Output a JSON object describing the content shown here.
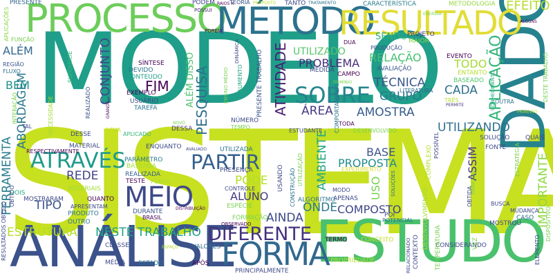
{
  "words": [
    {
      "text": "SISTEMA",
      "color": "#c7e020"
    },
    {
      "text": "MODELO",
      "color": "#1f9e89"
    },
    {
      "text": "ANÁLISE",
      "color": "#3b528b"
    },
    {
      "text": "ESTUDO",
      "color": "#4ac16d"
    },
    {
      "text": "PROCESSO",
      "color": "#6ccd5a"
    },
    {
      "text": "DADO",
      "color": "#26828e"
    },
    {
      "text": "MÉTODO",
      "color": "#2c728e"
    },
    {
      "text": "RESULTADO",
      "color": "#e1dd37"
    },
    {
      "text": "FORMA",
      "color": "#31688e"
    },
    {
      "text": "MEIO",
      "color": "#3e4989"
    },
    {
      "text": "SOBRE",
      "color": "#25848e"
    },
    {
      "text": "PARTIR",
      "color": "#355f8d"
    },
    {
      "text": "ATRAVÉS",
      "color": "#1f9a8a"
    },
    {
      "text": "DIFERENTE",
      "color": "#46327e"
    },
    {
      "text": "EFEITO",
      "color": "#b5de2b"
    },
    {
      "text": "PROBLEMA",
      "color": "#472d7b"
    },
    {
      "text": "TÉCNICA",
      "color": "#39568c"
    },
    {
      "text": "GRUPO",
      "color": "#2a788e"
    },
    {
      "text": "AMOSTRA",
      "color": "#365c8d"
    },
    {
      "text": "CADA",
      "color": "#2d708e"
    },
    {
      "text": "ÁREA",
      "color": "#443a83"
    },
    {
      "text": "UTILIZANDO",
      "color": "#2e6e8e"
    },
    {
      "text": "APLICAÇÃO",
      "color": "#35b779"
    },
    {
      "text": "ATIVIDADE",
      "color": "#481f70"
    },
    {
      "text": "PESQUISA",
      "color": "#2d708e"
    },
    {
      "text": "CONJUNTO",
      "color": "#3e4989"
    },
    {
      "text": "FIM",
      "color": "#440154"
    },
    {
      "text": "ABORDAGEM",
      "color": "#2a788e"
    },
    {
      "text": "ALÉM",
      "color": "#31688e"
    },
    {
      "text": "BEM",
      "color": "#20928c"
    },
    {
      "text": "FERRAMENTA",
      "color": "#287d8e"
    },
    {
      "text": "ESTRUTURA",
      "color": "#b5de2b"
    },
    {
      "text": "NESTE TRABALHO",
      "color": "#1f9e89"
    },
    {
      "text": "TIPO",
      "color": "#3b528b"
    },
    {
      "text": "REDE",
      "color": "#414487"
    },
    {
      "text": "PODE",
      "color": "#b5de2b"
    },
    {
      "text": "ALUNO",
      "color": "#443a83"
    },
    {
      "text": "ONDE",
      "color": "#2a788e"
    },
    {
      "text": "AINDA",
      "color": "#3e4989"
    },
    {
      "text": "COMPOSTO",
      "color": "#404688"
    },
    {
      "text": "PROPOSTA",
      "color": "#228c8d"
    },
    {
      "text": "BASE",
      "color": "#3b528b"
    },
    {
      "text": "AMBIENTE",
      "color": "#22a884"
    },
    {
      "text": "USO",
      "color": "#7ad151"
    },
    {
      "text": "ASSIM",
      "color": "#46337f"
    },
    {
      "text": "IMPORTANTE",
      "color": "#8fd744"
    },
    {
      "text": "TODO",
      "color": "#a5db36"
    },
    {
      "text": "RELAÇÃO",
      "color": "#46c06f"
    },
    {
      "text": "UTILIZADO",
      "color": "#54c568"
    },
    {
      "text": "SENDO",
      "color": "#29af7f"
    },
    {
      "text": "ALÉM DISSO",
      "color": "#4ac16d"
    },
    {
      "text": "PRESENTE",
      "color": "#31688e"
    },
    {
      "text": "APLICAÇÕES",
      "color": "#8fd744"
    },
    {
      "text": "FUNÇÃO",
      "color": "#7ad151"
    },
    {
      "text": "REGIÃO",
      "color": "#39568c"
    },
    {
      "text": "FLUXO",
      "color": "#2c728e"
    },
    {
      "text": "INTERAÇÃO",
      "color": "#7ad151"
    },
    {
      "text": "TAL",
      "color": "#3e4989"
    },
    {
      "text": "PODEM",
      "color": "#3e4989"
    },
    {
      "text": "POSSUI",
      "color": "#481f70"
    },
    {
      "text": "TEORIA",
      "color": "#3b528b"
    },
    {
      "text": "PROPOSTO",
      "color": "#b5de2b"
    },
    {
      "text": "TANTO",
      "color": "#3e4989"
    },
    {
      "text": "TRATAMENTO",
      "color": "#2c728e"
    },
    {
      "text": "CARACTERÍSTICA",
      "color": "#287d8e"
    },
    {
      "text": "METODOLOGIA",
      "color": "#95d840"
    },
    {
      "text": "PROJETO",
      "color": "#46327e"
    },
    {
      "text": "MAIOR",
      "color": "#86d549"
    },
    {
      "text": "PRODUÇÃO",
      "color": "#3b528b"
    },
    {
      "text": "AVALIAÇÃO",
      "color": "#39568c"
    },
    {
      "text": "EVENTO",
      "color": "#440154"
    },
    {
      "text": "ENTANTO",
      "color": "#b5de2b"
    },
    {
      "text": "CAMPO",
      "color": "#440154"
    },
    {
      "text": "MEDIDA",
      "color": "#3e4989"
    },
    {
      "text": "BASEADO",
      "color": "#52c569"
    },
    {
      "text": "LITERATURA",
      "color": "#31688e"
    },
    {
      "text": "COMPORTAMENTO",
      "color": "#2c728e"
    },
    {
      "text": "TRÊS",
      "color": "#b5de2b"
    },
    {
      "text": "PERMITE",
      "color": "#46327e"
    },
    {
      "text": "OUTRA",
      "color": "#2c728e"
    },
    {
      "text": "CONHECIMENTO",
      "color": "#22a884"
    },
    {
      "text": "SÍNTESE",
      "color": "#440154"
    },
    {
      "text": "DEVIDO",
      "color": "#2c728e"
    },
    {
      "text": "CONTEUDO",
      "color": "#1f9e89"
    },
    {
      "text": "EXEMPLO",
      "color": "#440154"
    },
    {
      "text": "USUÁRIO",
      "color": "#3e4989"
    },
    {
      "text": "TAREFA",
      "color": "#2c728e"
    },
    {
      "text": "SUPERFÍCIE",
      "color": "#35b779"
    },
    {
      "text": "NECESSIDADE",
      "color": "#a5db36"
    },
    {
      "text": "REALIZADO",
      "color": "#3b528b"
    },
    {
      "text": "ÁGUA",
      "color": "#c2df23"
    },
    {
      "text": "DESSE",
      "color": "#3e4989"
    },
    {
      "text": "DESSA",
      "color": "#46327e"
    },
    {
      "text": "APLICADO",
      "color": "#35b779"
    },
    {
      "text": "MATERIAL",
      "color": "#3e4989"
    },
    {
      "text": "RESPECTIVAMENTE",
      "color": "#440154"
    },
    {
      "text": "ENQUANTO",
      "color": "#3e4989"
    },
    {
      "text": "PARÂMETRO",
      "color": "#2a788e"
    },
    {
      "text": "BASEADA",
      "color": "#a5db36"
    },
    {
      "text": "REALIZADA",
      "color": "#355f8d"
    },
    {
      "text": "TESTE",
      "color": "#440154"
    },
    {
      "text": "PONTO",
      "color": "#a5db36"
    },
    {
      "text": "QUANTO",
      "color": "#440154"
    },
    {
      "text": "DURANTE",
      "color": "#3b528b"
    },
    {
      "text": "BRASIL",
      "color": "#440154"
    },
    {
      "text": "APRESENTAM",
      "color": "#3e4989"
    },
    {
      "text": "PRODUTO",
      "color": "#2c728e"
    },
    {
      "text": "OUTRO",
      "color": "#2c728e"
    },
    {
      "text": "MOSTRARAM",
      "color": "#3e4989"
    },
    {
      "text": "MATERIAIS",
      "color": "#a5db36"
    },
    {
      "text": "DOIS",
      "color": "#22a884"
    },
    {
      "text": "CLASSE",
      "color": "#3e4989"
    },
    {
      "text": "OBTIDO",
      "color": "#3e4989"
    },
    {
      "text": "MÉDIA",
      "color": "#3e4989"
    },
    {
      "text": "ESTADO",
      "color": "#2c728e"
    },
    {
      "text": "APÓS",
      "color": "#440154"
    },
    {
      "text": "VALORES",
      "color": "#31688e"
    },
    {
      "text": "ENSINO MÉDIO",
      "color": "#7ad151"
    },
    {
      "text": "AUMENTO",
      "color": "#22a884"
    },
    {
      "text": "PRESENTE TRABALHO",
      "color": "#3b528b"
    },
    {
      "text": "DINÂMICA",
      "color": "#3e4989"
    },
    {
      "text": "DUA",
      "color": "#440154"
    },
    {
      "text": "NÚMERO",
      "color": "#3e4989"
    },
    {
      "text": "TEMPO",
      "color": "#7ad151"
    },
    {
      "text": "TODA",
      "color": "#440154"
    },
    {
      "text": "UTILIZADA",
      "color": "#2c728e"
    },
    {
      "text": "PRESENÇA",
      "color": "#3e4989"
    },
    {
      "text": "CONTROLE",
      "color": "#3e4989"
    },
    {
      "text": "ESPÉCIE",
      "color": "#7ad151"
    },
    {
      "text": "FORMAÇÃO",
      "color": "#7ad151"
    },
    {
      "text": "ALGORITMO",
      "color": "#2c728e"
    },
    {
      "text": "MODO",
      "color": "#3e4989"
    },
    {
      "text": "APENAS",
      "color": "#3e4989"
    },
    {
      "text": "USANDO",
      "color": "#3e4989"
    },
    {
      "text": "CONSTRUÇÃO",
      "color": "#2c728e"
    },
    {
      "text": "UTILIZAÇÃO",
      "color": "#7ad151"
    },
    {
      "text": "ESTUDANTE",
      "color": "#3e4989"
    },
    {
      "text": "DESENVOLVIDO",
      "color": "#7ad151"
    },
    {
      "text": "EXPERIMENTO",
      "color": "#e1dd37"
    },
    {
      "text": "MECANISMO",
      "color": "#b5de2b"
    },
    {
      "text": "PRINCIPALMENTE",
      "color": "#3e4989"
    },
    {
      "text": "PROPRIEDADE",
      "color": "#b5de2b"
    },
    {
      "text": "CONCEITO",
      "color": "#c2df23"
    },
    {
      "text": "TERMO",
      "color": "#440154"
    },
    {
      "text": "DESENVOLVIMENTO",
      "color": "#a5db36"
    },
    {
      "text": "CONSIDERANDO",
      "color": "#3e4989"
    },
    {
      "text": "TEMPERATURA",
      "color": "#7ad151"
    },
    {
      "text": "RELACIONADO",
      "color": "#3e4989"
    },
    {
      "text": "CONTEXTO",
      "color": "#3e4989"
    },
    {
      "text": "POTENCIAL",
      "color": "#2c728e"
    },
    {
      "text": "SOLUÇÕES",
      "color": "#2c728e"
    },
    {
      "text": "OBSERVADO",
      "color": "#440154"
    },
    {
      "text": "AVALIADO",
      "color": "#3e4989"
    },
    {
      "text": "SOLUÇÃO",
      "color": "#3e4989"
    },
    {
      "text": "FONTE",
      "color": "#3e4989"
    },
    {
      "text": "QUAIS",
      "color": "#3e4989"
    },
    {
      "text": "ESTRATÉGIA",
      "color": "#7ad151"
    },
    {
      "text": "PRINCIPAL",
      "color": "#7ad151"
    },
    {
      "text": "OBTIDA",
      "color": "#3e4989"
    },
    {
      "text": "MOSTROU",
      "color": "#3e4989"
    },
    {
      "text": "BUSCA",
      "color": "#3e4989"
    },
    {
      "text": "CASO",
      "color": "#2c728e"
    },
    {
      "text": "MUDANÇA",
      "color": "#3e4989"
    },
    {
      "text": "VEZ",
      "color": "#7ad151"
    },
    {
      "text": "ELEMENTO",
      "color": "#3e4989"
    },
    {
      "text": "DISPOSITIVO",
      "color": "#7ad151"
    },
    {
      "text": "COMPLEXO",
      "color": "#b5de2b"
    },
    {
      "text": "POSSÍVEL",
      "color": "#3e4989"
    },
    {
      "text": "PRIMEIRO",
      "color": "#b5de2b"
    },
    {
      "text": "DESTE TRABALHO",
      "color": "#7ad151"
    },
    {
      "text": "ENERGIA",
      "color": "#7ad151"
    },
    {
      "text": "ALGUNS",
      "color": "#440154"
    },
    {
      "text": "RESULTADOS OBTIDO",
      "color": "#3e4989"
    },
    {
      "text": "DISTRIBUIÇÃO",
      "color": "#440154"
    },
    {
      "text": "RAIOS X",
      "color": "#440154"
    },
    {
      "text": "POI",
      "color": "#3e4989"
    },
    {
      "text": "ESPAÇO",
      "color": "#b5de2b"
    },
    {
      "text": "NOVO",
      "color": "#7ad151"
    },
    {
      "text": "GRANDE",
      "color": "#440154"
    },
    {
      "text": "DOMÍNIO",
      "color": "#7ad151"
    },
    {
      "text": "PORÉM",
      "color": "#440154"
    },
    {
      "text": "TRABALHO",
      "color": "#3e4989"
    },
    {
      "text": "APRESENTA",
      "color": "#3e4989"
    },
    {
      "text": "RELACIONADA",
      "color": "#3e4989"
    },
    {
      "text": "PORTANTO",
      "color": "#440154"
    },
    {
      "text": "ALGUMA",
      "color": "#7ad151"
    },
    {
      "text": "FASE",
      "color": "#440154"
    },
    {
      "text": "TAIS",
      "color": "#3e4989"
    },
    {
      "text": "NOVA",
      "color": "#7ad151"
    },
    {
      "text": "DESSES",
      "color": "#7ad151"
    },
    {
      "text": "POSSUEM",
      "color": "#b5de2b"
    },
    {
      "text": "FATOR",
      "color": "#7ad151"
    },
    {
      "text": "FORMAÇÃO",
      "color": "#3e4989"
    }
  ]
}
